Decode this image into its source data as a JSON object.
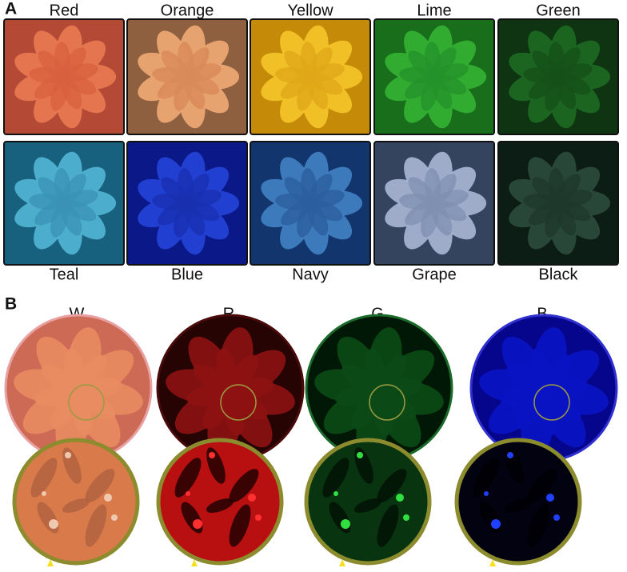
{
  "panels": {
    "A": {
      "label": "A",
      "tiles": [
        {
          "label": "Red"
        },
        {
          "label": "Orange"
        },
        {
          "label": "Yellow"
        },
        {
          "label": "Lime"
        },
        {
          "label": "Green"
        },
        {
          "label": "Teal"
        },
        {
          "label": "Blue"
        },
        {
          "label": "Navy"
        },
        {
          "label": "Grape"
        },
        {
          "label": "Black"
        }
      ]
    },
    "B": {
      "label": "B",
      "channels": [
        {
          "label": "W"
        },
        {
          "label": "R"
        },
        {
          "label": "G"
        },
        {
          "label": "B"
        }
      ]
    }
  }
}
